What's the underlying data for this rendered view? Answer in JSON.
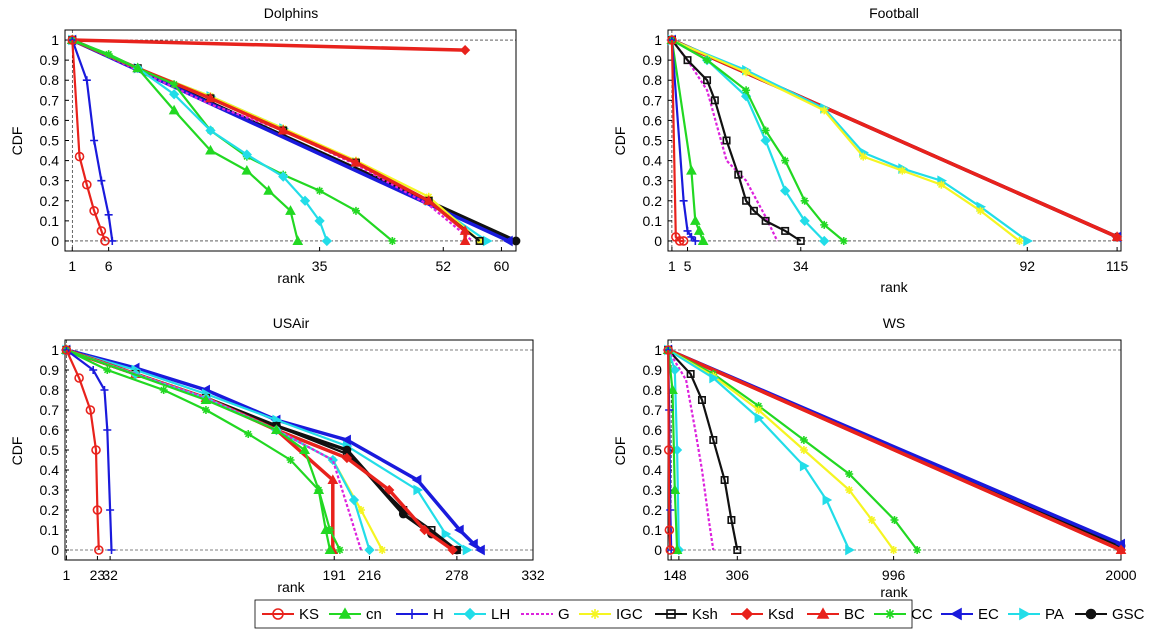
{
  "chart_data": [
    {
      "type": "line",
      "title": "Dolphins",
      "xlabel": "rank",
      "ylabel": "CDF",
      "xlim": [
        0,
        62
      ],
      "ylim": [
        -0.05,
        1.05
      ],
      "xticks": [
        1,
        6,
        35,
        52,
        60
      ],
      "yticks": [
        0,
        0.1,
        0.2,
        0.3,
        0.4,
        0.5,
        0.6,
        0.7,
        0.8,
        0.9,
        1
      ],
      "ref_x": 1,
      "series": [
        {
          "name": "GSC",
          "x": [
            1,
            62
          ],
          "y": [
            1,
            0
          ]
        },
        {
          "name": "EC",
          "x": [
            1,
            61
          ],
          "y": [
            1,
            0
          ]
        },
        {
          "name": "PA",
          "x": [
            1,
            10,
            20,
            30,
            40,
            50,
            58
          ],
          "y": [
            1,
            0.86,
            0.72,
            0.56,
            0.39,
            0.2,
            0.0
          ]
        },
        {
          "name": "IGC",
          "x": [
            1,
            10,
            20,
            30,
            40,
            50,
            57
          ],
          "y": [
            1,
            0.86,
            0.72,
            0.56,
            0.4,
            0.22,
            0.0
          ]
        },
        {
          "name": "Ksh",
          "x": [
            1,
            10,
            20,
            30,
            40,
            50,
            57
          ],
          "y": [
            1,
            0.86,
            0.71,
            0.55,
            0.39,
            0.2,
            0.0
          ]
        },
        {
          "name": "G",
          "x": [
            1,
            10,
            20,
            30,
            40,
            50,
            56
          ],
          "y": [
            1,
            0.85,
            0.68,
            0.55,
            0.38,
            0.18,
            0.0
          ]
        },
        {
          "name": "BC",
          "x": [
            1,
            10,
            20,
            30,
            40,
            50,
            55,
            55
          ],
          "y": [
            1,
            0.86,
            0.71,
            0.55,
            0.39,
            0.2,
            0.05,
            0.0
          ]
        },
        {
          "name": "Ksd",
          "x": [
            1,
            55
          ],
          "y": [
            1,
            0.95
          ]
        },
        {
          "name": "CC",
          "x": [
            1,
            6,
            10,
            15,
            20,
            25,
            30,
            35,
            40,
            45
          ],
          "y": [
            1,
            0.93,
            0.86,
            0.78,
            0.55,
            0.42,
            0.33,
            0.25,
            0.15,
            0.0
          ]
        },
        {
          "name": "LH",
          "x": [
            1,
            10,
            15,
            20,
            25,
            30,
            33,
            35,
            36
          ],
          "y": [
            1,
            0.86,
            0.73,
            0.55,
            0.43,
            0.32,
            0.2,
            0.1,
            0.0
          ]
        },
        {
          "name": "cn",
          "x": [
            1,
            10,
            15,
            20,
            25,
            28,
            31,
            32
          ],
          "y": [
            1,
            0.86,
            0.65,
            0.45,
            0.35,
            0.25,
            0.15,
            0.0
          ]
        },
        {
          "name": "H",
          "x": [
            1,
            3,
            4,
            5,
            6,
            6.5
          ],
          "y": [
            1,
            0.8,
            0.5,
            0.3,
            0.13,
            0.0
          ]
        },
        {
          "name": "KS",
          "x": [
            1,
            2,
            3,
            4,
            5,
            5.5
          ],
          "y": [
            1,
            0.42,
            0.28,
            0.15,
            0.05,
            0.0
          ]
        }
      ]
    },
    {
      "type": "line",
      "title": "Football",
      "xlabel": "rank",
      "ylabel": "CDF",
      "xlim": [
        0,
        116
      ],
      "ylim": [
        -0.05,
        1.05
      ],
      "xticks": [
        1,
        5,
        34,
        92,
        115
      ],
      "yticks": [
        0,
        0.1,
        0.2,
        0.3,
        0.4,
        0.5,
        0.6,
        0.7,
        0.8,
        0.9,
        1
      ],
      "ref_x": 1,
      "series": [
        {
          "name": "GSC",
          "x": [
            1,
            115
          ],
          "y": [
            1,
            0.02
          ]
        },
        {
          "name": "EC",
          "x": [
            1,
            115
          ],
          "y": [
            1,
            0.02
          ]
        },
        {
          "name": "Ksd",
          "x": [
            1,
            115
          ],
          "y": [
            1,
            0.02
          ]
        },
        {
          "name": "BC",
          "x": [
            1,
            115
          ],
          "y": [
            1,
            0.02
          ]
        },
        {
          "name": "PA",
          "x": [
            1,
            20,
            40,
            50,
            60,
            70,
            80,
            92
          ],
          "y": [
            1,
            0.85,
            0.66,
            0.44,
            0.36,
            0.3,
            0.17,
            0.0
          ]
        },
        {
          "name": "IGC",
          "x": [
            1,
            20,
            40,
            50,
            60,
            70,
            80,
            90
          ],
          "y": [
            1,
            0.84,
            0.65,
            0.42,
            0.35,
            0.28,
            0.15,
            0.0
          ]
        },
        {
          "name": "LH",
          "x": [
            1,
            10,
            20,
            25,
            30,
            35,
            40
          ],
          "y": [
            1,
            0.9,
            0.72,
            0.5,
            0.25,
            0.1,
            0.0
          ]
        },
        {
          "name": "CC",
          "x": [
            1,
            10,
            20,
            25,
            30,
            35,
            40,
            45
          ],
          "y": [
            1,
            0.9,
            0.75,
            0.55,
            0.4,
            0.2,
            0.08,
            0.0
          ]
        },
        {
          "name": "G",
          "x": [
            1,
            5,
            10,
            15,
            20,
            25,
            28
          ],
          "y": [
            1,
            0.9,
            0.75,
            0.4,
            0.3,
            0.12,
            0.0
          ]
        },
        {
          "name": "Ksh",
          "x": [
            1,
            5,
            10,
            12,
            15,
            18,
            20,
            22,
            25,
            30,
            34
          ],
          "y": [
            1,
            0.9,
            0.8,
            0.7,
            0.5,
            0.33,
            0.2,
            0.15,
            0.1,
            0.05,
            0.0
          ]
        },
        {
          "name": "cn",
          "x": [
            1,
            6,
            7,
            8,
            9
          ],
          "y": [
            1,
            0.35,
            0.1,
            0.05,
            0.0
          ]
        },
        {
          "name": "H",
          "x": [
            1,
            4,
            5,
            6,
            7
          ],
          "y": [
            1,
            0.2,
            0.05,
            0.02,
            0.0
          ]
        },
        {
          "name": "KS",
          "x": [
            1,
            2,
            3,
            4
          ],
          "y": [
            1,
            0.02,
            0.0,
            0.0
          ]
        }
      ]
    },
    {
      "type": "line",
      "title": "USAir",
      "xlabel": "rank",
      "ylabel": "CDF",
      "xlim": [
        0,
        332
      ],
      "ylim": [
        -0.05,
        1.05
      ],
      "xticks": [
        1,
        23,
        32,
        191,
        216,
        278,
        332
      ],
      "yticks": [
        0,
        0.1,
        0.2,
        0.3,
        0.4,
        0.5,
        0.6,
        0.7,
        0.8,
        0.9,
        1
      ],
      "ref_x": 1,
      "series": [
        {
          "name": "EC",
          "x": [
            1,
            50,
            100,
            150,
            200,
            250,
            280,
            290,
            295
          ],
          "y": [
            1,
            0.91,
            0.8,
            0.65,
            0.55,
            0.35,
            0.1,
            0.03,
            0.0
          ]
        },
        {
          "name": "PA",
          "x": [
            1,
            50,
            100,
            150,
            200,
            250,
            270,
            285
          ],
          "y": [
            1,
            0.9,
            0.78,
            0.65,
            0.52,
            0.3,
            0.08,
            0.0
          ]
        },
        {
          "name": "GSC",
          "x": [
            1,
            50,
            100,
            150,
            200,
            240,
            260,
            278
          ],
          "y": [
            1,
            0.88,
            0.76,
            0.62,
            0.5,
            0.18,
            0.08,
            0.0
          ]
        },
        {
          "name": "Ksh",
          "x": [
            1,
            50,
            100,
            150,
            200,
            240,
            260,
            278
          ],
          "y": [
            1,
            0.88,
            0.76,
            0.62,
            0.48,
            0.2,
            0.1,
            0.0
          ]
        },
        {
          "name": "Ksd",
          "x": [
            1,
            50,
            100,
            150,
            200,
            230,
            255,
            275
          ],
          "y": [
            1,
            0.88,
            0.76,
            0.6,
            0.46,
            0.3,
            0.1,
            0.0
          ]
        },
        {
          "name": "BC",
          "x": [
            1,
            50,
            100,
            150,
            190,
            190
          ],
          "y": [
            1,
            0.88,
            0.76,
            0.6,
            0.35,
            0.0
          ]
        },
        {
          "name": "IGC",
          "x": [
            1,
            50,
            100,
            150,
            190,
            210,
            225
          ],
          "y": [
            1,
            0.88,
            0.76,
            0.6,
            0.45,
            0.2,
            0.0
          ]
        },
        {
          "name": "LH",
          "x": [
            1,
            50,
            100,
            150,
            190,
            205,
            216
          ],
          "y": [
            1,
            0.88,
            0.76,
            0.6,
            0.45,
            0.25,
            0.0
          ]
        },
        {
          "name": "G",
          "x": [
            1,
            50,
            100,
            150,
            190,
            210
          ],
          "y": [
            1,
            0.88,
            0.76,
            0.6,
            0.45,
            0.0
          ]
        },
        {
          "name": "CC",
          "x": [
            1,
            30,
            70,
            100,
            130,
            160,
            180,
            188,
            195
          ],
          "y": [
            1,
            0.9,
            0.8,
            0.7,
            0.58,
            0.45,
            0.3,
            0.1,
            0.0
          ]
        },
        {
          "name": "cn",
          "x": [
            1,
            100,
            150,
            170,
            180,
            185,
            188
          ],
          "y": [
            1,
            0.75,
            0.6,
            0.5,
            0.3,
            0.1,
            0.0
          ]
        },
        {
          "name": "H",
          "x": [
            1,
            20,
            28,
            30,
            32,
            33
          ],
          "y": [
            1,
            0.9,
            0.8,
            0.6,
            0.2,
            0.0
          ]
        },
        {
          "name": "KS",
          "x": [
            1,
            10,
            18,
            22,
            23,
            24
          ],
          "y": [
            1,
            0.86,
            0.7,
            0.5,
            0.2,
            0.0
          ]
        }
      ]
    },
    {
      "type": "line",
      "title": "WS",
      "xlabel": "rank",
      "ylabel": "CDF",
      "xlim": [
        0,
        2000
      ],
      "ylim": [
        -0.05,
        1.05
      ],
      "xticks": [
        14,
        48,
        306,
        996,
        2000
      ],
      "yticks": [
        0,
        0.1,
        0.2,
        0.3,
        0.4,
        0.5,
        0.6,
        0.7,
        0.8,
        0.9,
        1
      ],
      "ref_x": 14,
      "series": [
        {
          "name": "GSC",
          "x": [
            1,
            2000
          ],
          "y": [
            1,
            0.02
          ]
        },
        {
          "name": "EC",
          "x": [
            1,
            2000
          ],
          "y": [
            1,
            0.03
          ]
        },
        {
          "name": "Ksd",
          "x": [
            1,
            2000
          ],
          "y": [
            1,
            0.0
          ]
        },
        {
          "name": "BC",
          "x": [
            1,
            2000
          ],
          "y": [
            1,
            0.0
          ]
        },
        {
          "name": "CC",
          "x": [
            1,
            200,
            400,
            600,
            800,
            1000,
            1100
          ],
          "y": [
            1,
            0.88,
            0.72,
            0.55,
            0.38,
            0.15,
            0.0
          ]
        },
        {
          "name": "IGC",
          "x": [
            1,
            200,
            400,
            600,
            800,
            900,
            996
          ],
          "y": [
            1,
            0.87,
            0.7,
            0.5,
            0.3,
            0.15,
            0.0
          ]
        },
        {
          "name": "PA",
          "x": [
            1,
            200,
            400,
            600,
            700,
            800
          ],
          "y": [
            1,
            0.86,
            0.66,
            0.42,
            0.25,
            0.0
          ]
        },
        {
          "name": "Ksh",
          "x": [
            1,
            100,
            150,
            200,
            250,
            280,
            306
          ],
          "y": [
            1,
            0.88,
            0.75,
            0.55,
            0.35,
            0.15,
            0.0
          ]
        },
        {
          "name": "G",
          "x": [
            1,
            80,
            120,
            150,
            180,
            200
          ],
          "y": [
            1,
            0.85,
            0.6,
            0.4,
            0.15,
            0.0
          ]
        },
        {
          "name": "LH",
          "x": [
            1,
            30,
            40,
            48
          ],
          "y": [
            1,
            0.9,
            0.5,
            0.0
          ]
        },
        {
          "name": "cn",
          "x": [
            1,
            20,
            30,
            40
          ],
          "y": [
            1,
            0.8,
            0.3,
            0.0
          ]
        },
        {
          "name": "H",
          "x": [
            1,
            5,
            10,
            14
          ],
          "y": [
            1,
            0.7,
            0.2,
            0.0
          ]
        },
        {
          "name": "KS",
          "x": [
            1,
            3,
            6,
            10
          ],
          "y": [
            1,
            0.5,
            0.1,
            0.0
          ]
        }
      ]
    }
  ],
  "legend": {
    "placement": "bottom",
    "entries": [
      {
        "name": "KS",
        "color": "#e8221c",
        "marker": "circle"
      },
      {
        "name": "cn",
        "color": "#22d822",
        "marker": "triangle"
      },
      {
        "name": "H",
        "color": "#1a1adc",
        "marker": "plus"
      },
      {
        "name": "LH",
        "color": "#22dde8",
        "marker": "diamond"
      },
      {
        "name": "G",
        "color": "#dd22dd",
        "marker": "none",
        "dashed": true
      },
      {
        "name": "IGC",
        "color": "#f5f522",
        "marker": "star"
      },
      {
        "name": "Ksh",
        "color": "#111111",
        "marker": "square"
      },
      {
        "name": "Ksd",
        "color": "#e8221c",
        "marker": "diamond"
      },
      {
        "name": "BC",
        "color": "#e8221c",
        "marker": "triangle"
      },
      {
        "name": "CC",
        "color": "#22d822",
        "marker": "star"
      },
      {
        "name": "EC",
        "color": "#1a1adc",
        "marker": "lefttriangle"
      },
      {
        "name": "PA",
        "color": "#22dde8",
        "marker": "righttriangle"
      },
      {
        "name": "GSC",
        "color": "#111111",
        "marker": "hexagram"
      }
    ]
  }
}
